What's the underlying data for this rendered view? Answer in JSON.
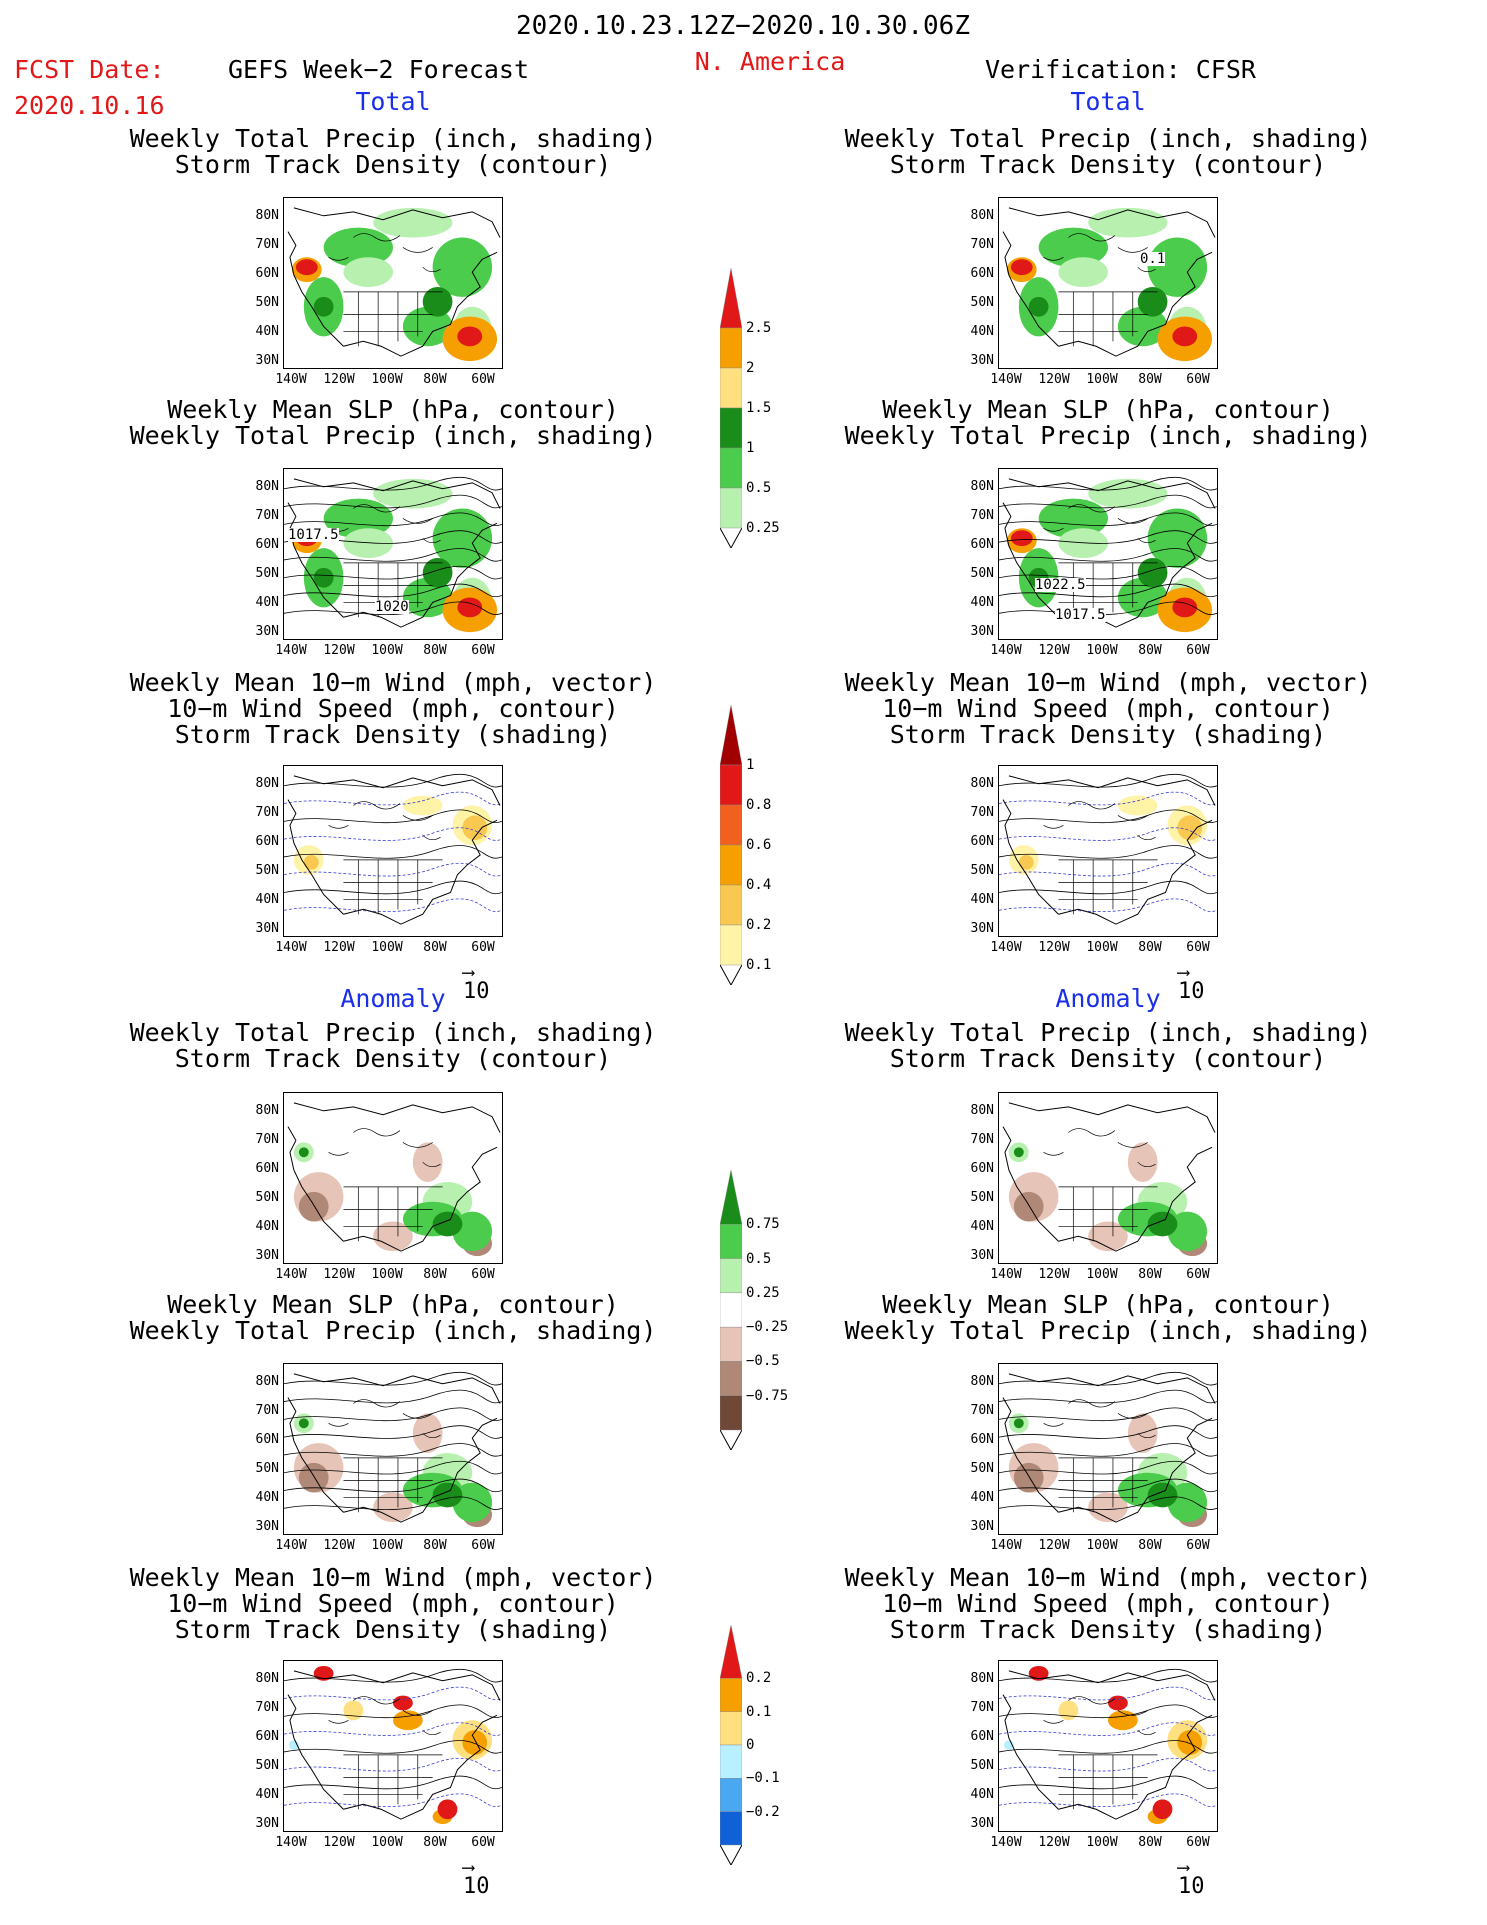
{
  "header": {
    "date_range": "2020.10.23.12Z−2020.10.30.06Z",
    "fcst_label": "FCST Date:",
    "fcst_date": "2020.10.16",
    "left_title": "GEFS Week−2 Forecast",
    "region": "N. America",
    "right_title": "Verification: CFSR"
  },
  "sections": {
    "total": "Total",
    "anomaly": "Anomaly"
  },
  "panel_titles": {
    "precip_storm": [
      "Weekly Total Precip (inch, shading)",
      "Storm Track Density (contour)"
    ],
    "slp_precip": [
      "Weekly Mean SLP (hPa, contour)",
      "Weekly Total Precip (inch, shading)"
    ],
    "wind_storm": [
      "Weekly Mean 10−m Wind (mph, vector)",
      "10−m Wind Speed (mph, contour)",
      "Storm Track Density (shading)"
    ]
  },
  "axes": {
    "lat_ticks": [
      "80N",
      "70N",
      "60N",
      "50N",
      "40N",
      "30N"
    ],
    "lon_ticks": [
      "140W",
      "120W",
      "100W",
      "80W",
      "60W"
    ]
  },
  "reference_vector": "10",
  "contour_labels": {
    "f_total_slp_a": "1017.5",
    "f_total_slp_b": "1020",
    "v_total_slp_a": "1022.5",
    "v_total_slp_b": "1017.5",
    "v_total_storm": "0.1"
  },
  "colorbars": {
    "total_precip": {
      "labels": [
        "2.5",
        "2",
        "1.5",
        "1",
        "0.5",
        "0.25"
      ],
      "colors": [
        "#e01818",
        "#f5a000",
        "#ffe080",
        "#1a8c1a",
        "#4ccc4c",
        "#b8f0b0"
      ]
    },
    "total_storm": {
      "labels": [
        "1",
        "0.8",
        "0.6",
        "0.4",
        "0.2",
        "0.1"
      ],
      "colors": [
        "#a00000",
        "#e01818",
        "#f26020",
        "#f5a000",
        "#f8c850",
        "#fff3a8"
      ]
    },
    "anom_precip": {
      "labels": [
        "0.75",
        "0.5",
        "0.25",
        "−0.25",
        "−0.5",
        "−0.75"
      ],
      "colors": [
        "#1a8c1a",
        "#4ccc4c",
        "#b8f0b0",
        "#ffffff",
        "#e6c4b8",
        "#b08878",
        "#704838"
      ]
    },
    "anom_storm": {
      "labels": [
        "0.2",
        "0.1",
        "0",
        "−0.1",
        "−0.2"
      ],
      "colors": [
        "#e01818",
        "#f5a000",
        "#ffe080",
        "#b8f0ff",
        "#4aa8f0",
        "#1060d8"
      ]
    }
  }
}
